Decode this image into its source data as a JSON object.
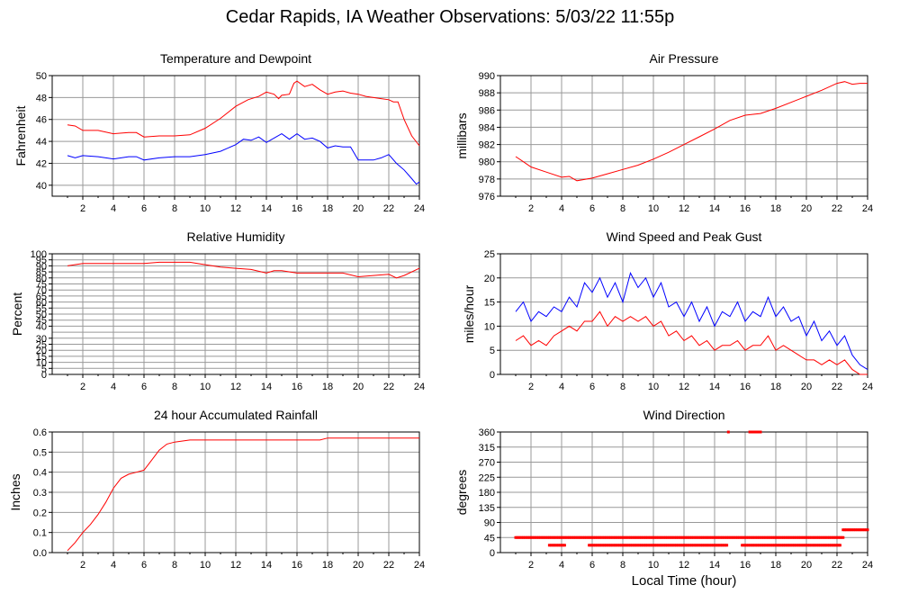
{
  "title": "Cedar Rapids, IA Weather Observations: 5/03/22 11:55p",
  "xlabel": "Local Time (hour)",
  "colors": {
    "red": "#ff0000",
    "blue": "#0000ff",
    "grid": "#999999",
    "axis": "#000000"
  },
  "chart_data": [
    {
      "id": "temp",
      "type": "line",
      "title": "Temperature and Dewpoint",
      "ylabel": "Fahrenheit",
      "xlim": [
        0,
        24
      ],
      "ylim": [
        39,
        50
      ],
      "xticks": [
        2,
        4,
        6,
        8,
        10,
        12,
        14,
        16,
        18,
        20,
        22,
        24
      ],
      "yticks": [
        40,
        42,
        44,
        46,
        48,
        50
      ],
      "series": [
        {
          "color": "red",
          "x": [
            1.0,
            1.5,
            2.0,
            3.0,
            4.0,
            5.0,
            5.5,
            6.0,
            7.0,
            8.0,
            9.0,
            10.0,
            11.0,
            12.0,
            12.8,
            13.5,
            14.0,
            14.5,
            14.8,
            15.0,
            15.5,
            15.8,
            16.0,
            16.5,
            17.0,
            17.5,
            18.0,
            18.5,
            19.0,
            19.5,
            20.0,
            20.5,
            21.0,
            21.5,
            22.0,
            22.3,
            22.6,
            23.0,
            23.5,
            24.0
          ],
          "values": [
            45.5,
            45.4,
            45.0,
            45.0,
            44.7,
            44.8,
            44.8,
            44.4,
            44.5,
            44.5,
            44.6,
            45.2,
            46.1,
            47.2,
            47.8,
            48.1,
            48.5,
            48.3,
            47.9,
            48.2,
            48.3,
            49.3,
            49.5,
            49.0,
            49.2,
            48.7,
            48.3,
            48.5,
            48.6,
            48.4,
            48.3,
            48.1,
            48.0,
            47.9,
            47.8,
            47.6,
            47.6,
            46.0,
            44.5,
            43.6
          ]
        },
        {
          "color": "blue",
          "x": [
            1.0,
            1.5,
            2.0,
            3.0,
            4.0,
            5.0,
            5.5,
            6.0,
            7.0,
            8.0,
            9.0,
            10.0,
            11.0,
            12.0,
            12.5,
            13.0,
            13.5,
            14.0,
            14.5,
            15.0,
            15.5,
            16.0,
            16.5,
            17.0,
            17.5,
            18.0,
            18.5,
            19.0,
            19.5,
            20.0,
            20.5,
            21.0,
            21.5,
            22.0,
            22.5,
            23.0,
            23.5,
            23.8,
            24.0
          ],
          "values": [
            42.7,
            42.5,
            42.7,
            42.6,
            42.4,
            42.6,
            42.6,
            42.3,
            42.5,
            42.6,
            42.6,
            42.8,
            43.1,
            43.7,
            44.2,
            44.1,
            44.4,
            43.9,
            44.3,
            44.7,
            44.2,
            44.7,
            44.2,
            44.3,
            44.0,
            43.4,
            43.6,
            43.5,
            43.5,
            42.3,
            42.3,
            42.3,
            42.5,
            42.8,
            42.0,
            41.4,
            40.6,
            40.1,
            40.3
          ]
        }
      ]
    },
    {
      "id": "pressure",
      "type": "line",
      "title": "Air Pressure",
      "ylabel": "millibars",
      "xlim": [
        0,
        24
      ],
      "ylim": [
        976,
        990
      ],
      "xticks": [
        2,
        4,
        6,
        8,
        10,
        12,
        14,
        16,
        18,
        20,
        22,
        24
      ],
      "yticks": [
        976,
        978,
        980,
        982,
        984,
        986,
        988,
        990
      ],
      "series": [
        {
          "color": "red",
          "x": [
            1.0,
            1.5,
            2.0,
            3.0,
            4.0,
            4.5,
            5.0,
            6.0,
            7.0,
            8.0,
            9.0,
            10.0,
            11.0,
            12.0,
            13.0,
            14.0,
            15.0,
            16.0,
            17.0,
            18.0,
            19.0,
            20.0,
            21.0,
            22.0,
            22.5,
            23.0,
            23.5,
            24.0
          ],
          "values": [
            980.6,
            980.0,
            979.4,
            978.8,
            978.2,
            978.3,
            977.8,
            978.1,
            978.6,
            979.1,
            979.6,
            980.3,
            981.1,
            982.0,
            982.9,
            983.8,
            984.8,
            985.4,
            985.6,
            986.2,
            986.9,
            987.6,
            988.3,
            989.1,
            989.3,
            989.0,
            989.1,
            989.1
          ]
        }
      ]
    },
    {
      "id": "rh",
      "type": "line",
      "title": "Relative Humidity",
      "ylabel": "Percent",
      "xlim": [
        0,
        24
      ],
      "ylim": [
        0,
        100
      ],
      "xticks": [
        2,
        4,
        6,
        8,
        10,
        12,
        14,
        16,
        18,
        20,
        22,
        24
      ],
      "yticks": [
        0,
        5,
        10,
        15,
        20,
        25,
        30,
        35,
        40,
        45,
        50,
        55,
        60,
        65,
        70,
        75,
        80,
        85,
        90,
        95,
        100
      ],
      "ytick_labels": [
        0,
        5,
        10,
        15,
        20,
        25,
        30,
        40,
        45,
        50,
        55,
        60,
        65,
        70,
        75,
        80,
        85,
        90,
        95,
        100
      ],
      "series": [
        {
          "color": "red",
          "x": [
            1.0,
            2.0,
            3.0,
            4.0,
            5.0,
            6.0,
            7.0,
            8.0,
            9.0,
            10.0,
            11.0,
            12.0,
            13.0,
            14.0,
            14.5,
            15.0,
            16.0,
            17.0,
            18.0,
            19.0,
            20.0,
            21.0,
            22.0,
            22.5,
            23.0,
            24.0
          ],
          "values": [
            90,
            92,
            92,
            92,
            92,
            92,
            93,
            93,
            93,
            91,
            89,
            88,
            87,
            84,
            86,
            86,
            84,
            84,
            84,
            84,
            81,
            82,
            83,
            80,
            82,
            88
          ]
        }
      ]
    },
    {
      "id": "wind",
      "type": "line",
      "title": "Wind Speed and Peak Gust",
      "ylabel": "miles/hour",
      "xlim": [
        0,
        24
      ],
      "ylim": [
        0,
        25
      ],
      "xticks": [
        2,
        4,
        6,
        8,
        10,
        12,
        14,
        16,
        18,
        20,
        22,
        24
      ],
      "yticks": [
        0,
        5,
        10,
        15,
        20,
        25
      ],
      "series": [
        {
          "color": "blue",
          "x": [
            1.0,
            1.5,
            2.0,
            2.5,
            3.0,
            3.5,
            4.0,
            4.5,
            5.0,
            5.5,
            6.0,
            6.5,
            7.0,
            7.5,
            8.0,
            8.5,
            9.0,
            9.5,
            10.0,
            10.5,
            11.0,
            11.5,
            12.0,
            12.5,
            13.0,
            13.5,
            14.0,
            14.5,
            15.0,
            15.5,
            16.0,
            16.5,
            17.0,
            17.5,
            18.0,
            18.5,
            19.0,
            19.5,
            20.0,
            20.5,
            21.0,
            21.5,
            22.0,
            22.5,
            23.0,
            23.5,
            24.0
          ],
          "values": [
            13,
            15,
            11,
            13,
            12,
            14,
            13,
            16,
            14,
            19,
            17,
            20,
            16,
            19,
            15,
            21,
            18,
            20,
            16,
            19,
            14,
            15,
            12,
            15,
            11,
            14,
            10,
            13,
            12,
            15,
            11,
            13,
            12,
            16,
            12,
            14,
            11,
            12,
            8,
            11,
            7,
            9,
            6,
            8,
            4,
            2,
            1
          ]
        },
        {
          "color": "red",
          "x": [
            1.0,
            1.5,
            2.0,
            2.5,
            3.0,
            3.5,
            4.0,
            4.5,
            5.0,
            5.5,
            6.0,
            6.5,
            7.0,
            7.5,
            8.0,
            8.5,
            9.0,
            9.5,
            10.0,
            10.5,
            11.0,
            11.5,
            12.0,
            12.5,
            13.0,
            13.5,
            14.0,
            14.5,
            15.0,
            15.5,
            16.0,
            16.5,
            17.0,
            17.5,
            18.0,
            18.5,
            19.0,
            19.5,
            20.0,
            20.5,
            21.0,
            21.5,
            22.0,
            22.5,
            23.0,
            23.5,
            24.0
          ],
          "values": [
            7,
            8,
            6,
            7,
            6,
            8,
            9,
            10,
            9,
            11,
            11,
            13,
            10,
            12,
            11,
            12,
            11,
            12,
            10,
            11,
            8,
            9,
            7,
            8,
            6,
            7,
            5,
            6,
            6,
            7,
            5,
            6,
            6,
            8,
            5,
            6,
            5,
            4,
            3,
            3,
            2,
            3,
            2,
            3,
            1,
            0,
            0
          ]
        }
      ]
    },
    {
      "id": "rain",
      "type": "line",
      "title": "24 hour Accumulated Rainfall",
      "ylabel": "Inches",
      "xlim": [
        0,
        24
      ],
      "ylim": [
        0,
        0.6
      ],
      "xticks": [
        2,
        4,
        6,
        8,
        10,
        12,
        14,
        16,
        18,
        20,
        22,
        24
      ],
      "yticks": [
        0.0,
        0.1,
        0.2,
        0.3,
        0.4,
        0.5,
        0.6
      ],
      "ytick_labels": [
        "0.0",
        "0.1",
        "0.2",
        "0.3",
        "0.4",
        "0.5",
        "0.6"
      ],
      "series": [
        {
          "color": "red",
          "x": [
            1.0,
            1.5,
            2.0,
            2.5,
            3.0,
            3.5,
            4.0,
            4.5,
            5.0,
            5.5,
            6.0,
            6.5,
            7.0,
            7.5,
            8.0,
            9.0,
            10.0,
            12.0,
            14.0,
            16.0,
            17.5,
            18.0,
            20.0,
            22.0,
            24.0
          ],
          "values": [
            0.01,
            0.05,
            0.1,
            0.14,
            0.19,
            0.25,
            0.32,
            0.37,
            0.39,
            0.4,
            0.41,
            0.46,
            0.51,
            0.54,
            0.55,
            0.56,
            0.56,
            0.56,
            0.56,
            0.56,
            0.56,
            0.57,
            0.57,
            0.57,
            0.57
          ]
        }
      ]
    },
    {
      "id": "dir",
      "type": "scatter",
      "title": "Wind Direction",
      "ylabel": "degrees",
      "xlim": [
        0,
        24
      ],
      "ylim": [
        0,
        360
      ],
      "xticks": [
        2,
        4,
        6,
        8,
        10,
        12,
        14,
        16,
        18,
        20,
        22,
        24
      ],
      "yticks": [
        0,
        45,
        90,
        135,
        180,
        225,
        270,
        315,
        360
      ],
      "segments": [
        {
          "x0": 1.0,
          "x1": 22.4,
          "value": 45
        },
        {
          "x0": 3.2,
          "x1": 4.2,
          "value": 22
        },
        {
          "x0": 5.8,
          "x1": 14.8,
          "value": 22
        },
        {
          "x0": 15.8,
          "x1": 22.2,
          "value": 22
        },
        {
          "x0": 22.4,
          "x1": 24.0,
          "value": 68
        },
        {
          "x0": 16.3,
          "x1": 17.0,
          "value": 360
        }
      ],
      "points": [
        {
          "x": 14.9,
          "value": 360
        }
      ]
    }
  ]
}
